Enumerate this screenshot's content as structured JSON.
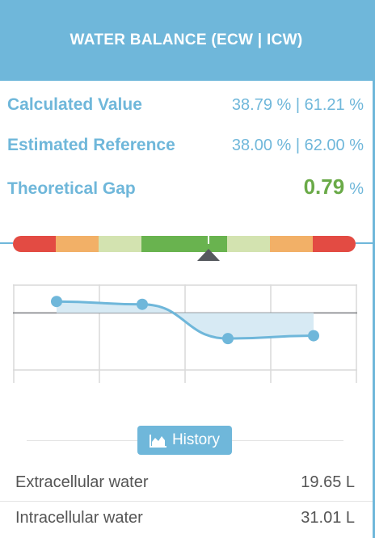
{
  "header": {
    "title": "WATER BALANCE (ECW | ICW)"
  },
  "metrics": {
    "calculated": {
      "label": "Calculated Value",
      "value": "38.79 % | 61.21 %"
    },
    "reference": {
      "label": "Estimated Reference",
      "value": "38.00 % | 62.00 %"
    },
    "gap": {
      "label": "Theoretical Gap",
      "value": "0.79",
      "unit": "%"
    }
  },
  "gauge": {
    "segments": [
      "#e34b43",
      "#f2b067",
      "#d3e3b0",
      "#69b34f",
      "#69b34f",
      "#d3e3b0",
      "#f2b067",
      "#e34b43"
    ],
    "marker_position": 0.57
  },
  "chart_data": {
    "type": "line",
    "points": [
      0.34,
      0.33,
      0.21,
      0.22
    ],
    "baseline": 0.3,
    "y_range": [
      0.1,
      0.4
    ],
    "grid": true,
    "line_color": "#6fb7da"
  },
  "history": {
    "label": "History",
    "icon": "area-chart-icon"
  },
  "info": [
    {
      "label": "Extracellular water",
      "value": "19.65 L"
    },
    {
      "label": "Intracellular water",
      "value": "31.01 L"
    }
  ]
}
